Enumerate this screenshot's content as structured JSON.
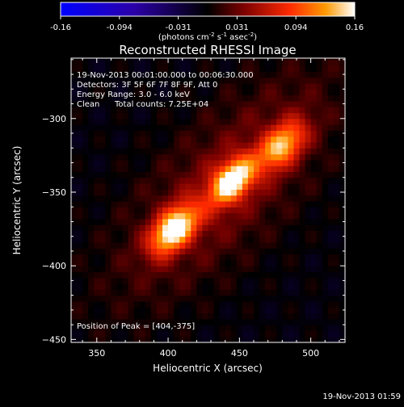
{
  "colorbar": {
    "ticks": [
      "-0.16",
      "-0.094",
      "-0.031",
      "0.031",
      "0.094",
      "0.16"
    ],
    "units_prefix": "(photons cm",
    "units_exp1": "-2",
    "units_mid": " s",
    "units_exp2": "-1",
    "units_mid2": " asec",
    "units_exp3": "-2",
    "units_suffix": ")"
  },
  "chart_data": {
    "type": "heatmap",
    "title": "Reconstructed RHESSI Image",
    "xlabel": "Heliocentric X (arcsec)",
    "ylabel": "Heliocentric Y (arcsec)",
    "xlim": [
      332,
      524
    ],
    "ylim": [
      -452,
      -259
    ],
    "x_ticks": [
      350,
      400,
      450,
      500
    ],
    "y_ticks": [
      -300,
      -350,
      -400,
      -450
    ],
    "value_range": [
      -0.16,
      0.16
    ],
    "sources": [
      {
        "x": 404,
        "y": -375,
        "peak": 0.16,
        "sx": 11,
        "sy": 8
      },
      {
        "x": 445,
        "y": -342,
        "peak": 0.15,
        "sx": 10,
        "sy": 8
      },
      {
        "x": 480,
        "y": -318,
        "peak": 0.12,
        "sx": 11,
        "sy": 8
      }
    ],
    "colormap": [
      "#0000ff",
      "#2b00a8",
      "#000000",
      "#7a0000",
      "#ff2a00",
      "#ff9a00",
      "#ffffff"
    ],
    "annotations": {
      "line1": "19-Nov-2013 00:01:00.000 to 00:06:30.000",
      "line2": "Detectors: 3F 5F 6F 7F 8F 9F, Att 0",
      "line3": "Energy Range: 3.0 - 6.0 keV",
      "line4_left": "Clean",
      "line4_right": "Total counts: 7.25E+04",
      "peak": "Position of Peak = [404,-375]"
    }
  },
  "timestamp": "19-Nov-2013 01:59"
}
